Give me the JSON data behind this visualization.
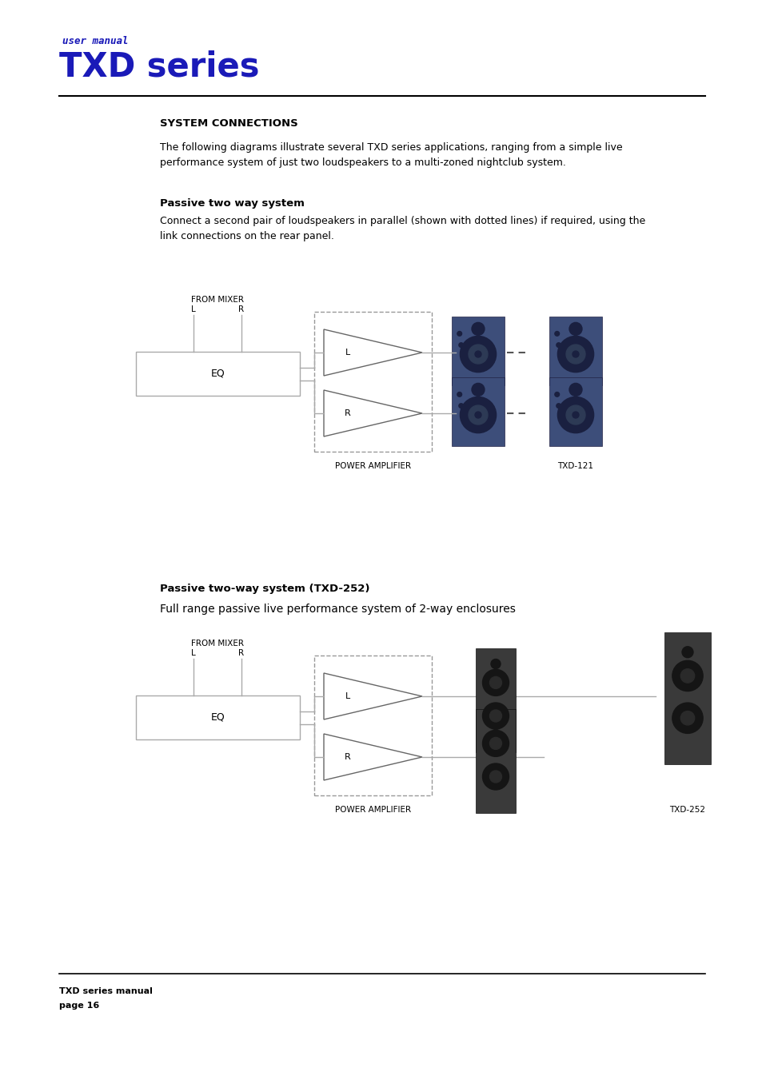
{
  "page_bg": "#ffffff",
  "header_color": "#1a1ab8",
  "header_small": "user manual",
  "header_large": "TXD series",
  "section_title": "SYSTEM CONNECTIONS",
  "intro_text": "The following diagrams illustrate several TXD series applications, ranging from a simple live\nperformance system of just two loudspeakers to a multi-zoned nightclub system.",
  "section1_title": "Passive two way system",
  "section1_body": "Connect a second pair of loudspeakers in parallel (shown with dotted lines) if required, using the\nlink connections on the rear panel.",
  "section2_title": "Passive two-way system (TXD-252)",
  "section2_body": "Full range passive live performance system of 2-way enclosures",
  "footer_line1": "TXD series manual",
  "footer_line2": "page 16",
  "diag1_label_amp": "POWER AMPLIFIER",
  "diag1_label_spk": "TXD-121",
  "diag2_label_amp": "POWER AMPLIFIER",
  "diag2_label_spk": "TXD-252",
  "line_color": "#aaaaaa",
  "box_color": "#aaaaaa",
  "spk1_color": "#3d4e7a",
  "spk1_dark": "#1a2040",
  "spk2_color": "#3a3a3a",
  "spk2_dark": "#1a1a1a"
}
